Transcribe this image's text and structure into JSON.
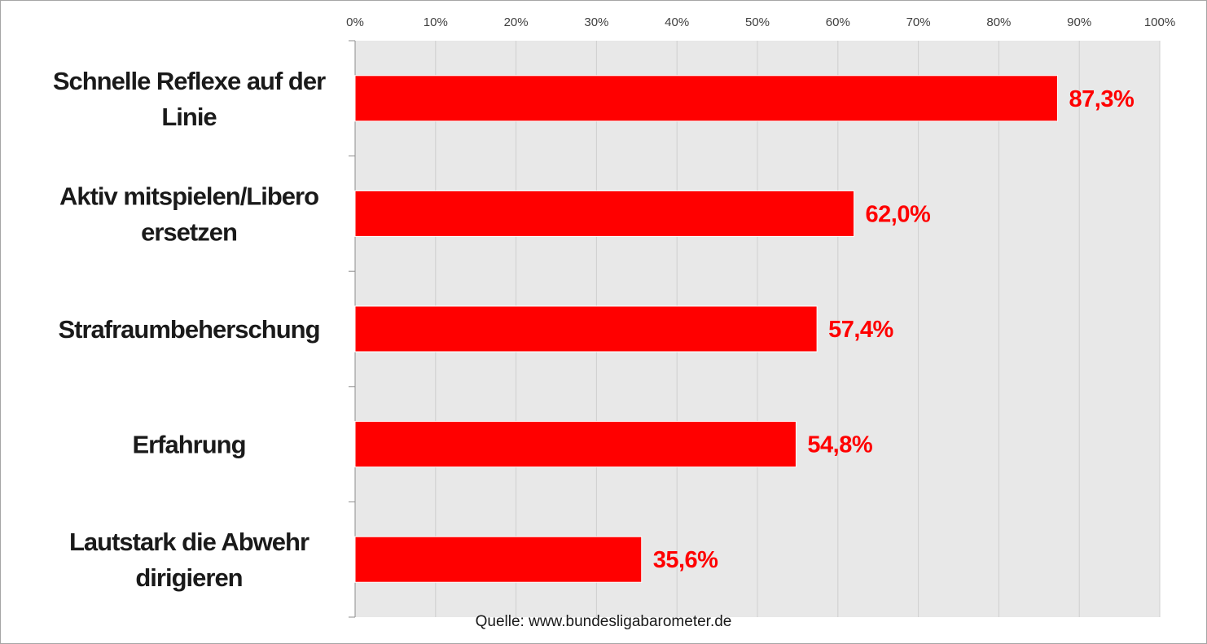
{
  "chart_data": {
    "type": "bar",
    "orientation": "horizontal",
    "categories": [
      [
        "Schnelle Reflexe auf der",
        "Linie"
      ],
      [
        "Aktiv mitspielen/Libero",
        "ersetzen"
      ],
      [
        "Strafraumbeherschung"
      ],
      [
        "Erfahrung"
      ],
      [
        "Lautstark die Abwehr",
        "dirigieren"
      ]
    ],
    "values": [
      87.3,
      62.0,
      57.4,
      54.8,
      35.6
    ],
    "value_labels": [
      "87,3%",
      "62,0%",
      "57,4%",
      "54,8%",
      "35,6%"
    ],
    "x_ticks": [
      "0%",
      "10%",
      "20%",
      "30%",
      "40%",
      "50%",
      "60%",
      "70%",
      "80%",
      "90%",
      "100%"
    ],
    "xlim": [
      0,
      100
    ],
    "x_axis_position": "top",
    "grid": true,
    "bar_color": "#ff0000",
    "plot_background": "#e8e8e8",
    "label_color": "#ff0000"
  },
  "footer": {
    "source": "Quelle: www.bundesligabarometer.de"
  }
}
